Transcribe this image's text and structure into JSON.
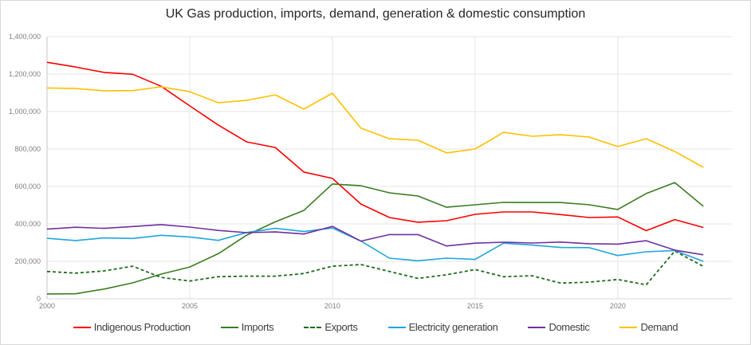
{
  "chart_data": {
    "type": "line",
    "title": "UK Gas production, imports, demand, generation & domestic consumption",
    "xlabel": "",
    "ylabel": "",
    "xlim": [
      2000,
      2024
    ],
    "ylim": [
      0,
      1400000
    ],
    "x_ticks": [
      2000,
      2005,
      2010,
      2015,
      2020
    ],
    "x_tick_labels": [
      "2000",
      "2005",
      "2010",
      "2015",
      "2020"
    ],
    "y_ticks": [
      0,
      200000,
      400000,
      600000,
      800000,
      1000000,
      1200000,
      1400000
    ],
    "y_tick_labels": [
      "0",
      "200,000",
      "400,000",
      "600,000",
      "800,000",
      "1,000,000",
      "1,200,000",
      "1,400,000"
    ],
    "grid": true,
    "legend_position": "bottom",
    "x": [
      2000,
      2001,
      2002,
      2003,
      2004,
      2005,
      2006,
      2007,
      2008,
      2009,
      2010,
      2011,
      2012,
      2013,
      2014,
      2015,
      2016,
      2017,
      2018,
      2019,
      2020,
      2021,
      2022,
      2023
    ],
    "series": [
      {
        "name": "Indigenous Production",
        "color": "#ff0000",
        "dash": "solid",
        "values": [
          1263000,
          1238000,
          1209000,
          1199000,
          1135000,
          1030000,
          928000,
          838000,
          808000,
          677000,
          643000,
          506000,
          434000,
          409000,
          417000,
          451000,
          464000,
          464000,
          450000,
          434000,
          437000,
          364000,
          423000,
          381000
        ]
      },
      {
        "name": "Imports",
        "color": "#3a7d22",
        "dash": "solid",
        "values": [
          26000,
          27000,
          52000,
          85000,
          132000,
          170000,
          241000,
          340000,
          411000,
          472000,
          613000,
          604000,
          566000,
          549000,
          489000,
          502000,
          515000,
          514000,
          514000,
          502000,
          477000,
          562000,
          621000,
          494000
        ]
      },
      {
        "name": "Exports",
        "color": "#1e6b1e",
        "dash": "dashed",
        "values": [
          146000,
          137000,
          149000,
          174000,
          114000,
          95000,
          118000,
          121000,
          121000,
          135000,
          174000,
          183000,
          146000,
          109000,
          128000,
          156000,
          118000,
          123000,
          84000,
          89000,
          103000,
          75000,
          255000,
          173000
        ]
      },
      {
        "name": "Electricity generation",
        "color": "#1ea6dc",
        "dash": "solid",
        "values": [
          323000,
          311000,
          325000,
          322000,
          339000,
          330000,
          312000,
          354000,
          376000,
          359000,
          378000,
          308000,
          217000,
          203000,
          217000,
          210000,
          297000,
          287000,
          274000,
          273000,
          231000,
          251000,
          258000,
          200000
        ]
      },
      {
        "name": "Domestic",
        "color": "#7030a0",
        "dash": "solid",
        "values": [
          372000,
          382000,
          376000,
          386000,
          396000,
          383000,
          365000,
          353000,
          357000,
          346000,
          387000,
          308000,
          343000,
          343000,
          282000,
          297000,
          302000,
          298000,
          303000,
          294000,
          292000,
          310000,
          260000,
          235000
        ]
      },
      {
        "name": "Demand",
        "color": "#ffc000",
        "dash": "solid",
        "values": [
          1126000,
          1123000,
          1111000,
          1112000,
          1132000,
          1106000,
          1047000,
          1060000,
          1089000,
          1013000,
          1098000,
          911000,
          855000,
          847000,
          779000,
          800000,
          889000,
          868000,
          876000,
          864000,
          813000,
          855000,
          787000,
          702000
        ]
      }
    ]
  }
}
